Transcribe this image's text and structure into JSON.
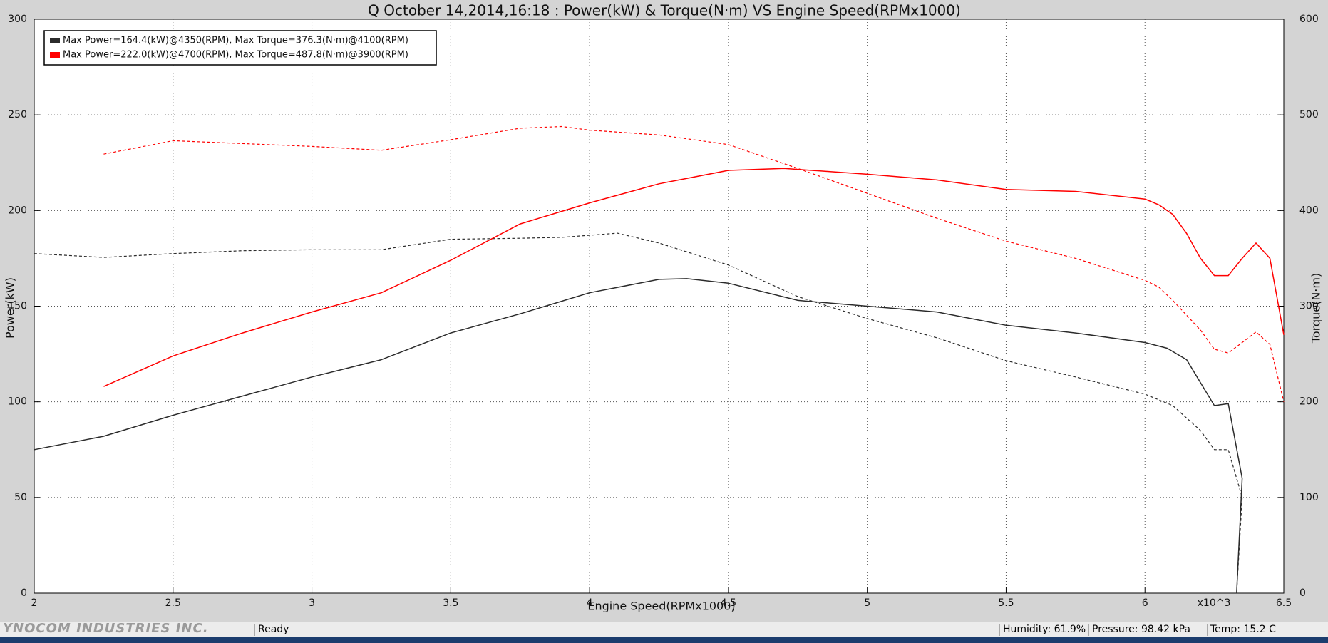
{
  "chart_data": {
    "type": "line",
    "title": "Q October 14,2014,16:18  : Power(kW) & Torque(N·m) VS Engine Speed(RPMx1000)",
    "xlabel": "Engine Speed(RPMx1000)",
    "ylabel": "Power(kW)",
    "y2label": "Torque(N·m)",
    "x_scale_label": "x10^3",
    "xlim": [
      2,
      6.5
    ],
    "xticks": [
      2,
      2.5,
      3,
      3.5,
      4,
      4.5,
      5,
      5.5,
      6,
      6.5
    ],
    "ylim": [
      0,
      300
    ],
    "yticks": [
      0,
      50,
      100,
      150,
      200,
      250,
      300
    ],
    "y2lim": [
      0,
      600
    ],
    "y2ticks": [
      0,
      100,
      200,
      300,
      400,
      500,
      600
    ],
    "grid": true,
    "legend_position": "upper left",
    "series": [
      {
        "name": "Max Power=164.4(kW)@4350(RPM), Max Torque=376.3(N·m)@4100(RPM)",
        "color": "#2b2b2b",
        "dash": false,
        "x": [
          2.0,
          2.25,
          2.5,
          2.75,
          3.0,
          3.25,
          3.5,
          3.75,
          4.0,
          4.25,
          4.35,
          4.5,
          4.75,
          5.0,
          5.25,
          5.5,
          5.75,
          6.0,
          6.08,
          6.15,
          6.2,
          6.25,
          6.3,
          6.35,
          6.33
        ],
        "values": [
          75,
          82,
          93,
          103,
          113,
          122,
          136,
          146,
          157,
          164,
          164.4,
          162,
          153,
          150,
          147,
          140,
          136,
          131,
          128,
          122,
          110,
          98,
          99,
          60,
          0
        ]
      },
      {
        "color": "#2b2b2b",
        "dash": true,
        "axis": "y2",
        "x": [
          2.0,
          2.25,
          2.5,
          2.75,
          3.0,
          3.25,
          3.5,
          3.75,
          3.9,
          4.1,
          4.25,
          4.5,
          4.75,
          5.0,
          5.25,
          5.5,
          5.75,
          6.0,
          6.1,
          6.2,
          6.25,
          6.3,
          6.35,
          6.33
        ],
        "values": [
          355,
          351,
          355,
          358,
          359,
          359,
          370,
          371,
          372,
          376.3,
          366,
          343,
          310,
          287,
          267,
          243,
          226,
          208,
          196,
          170,
          150,
          150,
          100,
          0
        ]
      },
      {
        "name": "Max Power=222.0(kW)@4700(RPM), Max Torque=487.8(N·m)@3900(RPM)",
        "color": "#ff0000",
        "dash": false,
        "x": [
          2.25,
          2.5,
          2.75,
          3.0,
          3.25,
          3.5,
          3.75,
          4.0,
          4.25,
          4.5,
          4.7,
          5.0,
          5.25,
          5.5,
          5.75,
          6.0,
          6.05,
          6.1,
          6.15,
          6.2,
          6.25,
          6.3,
          6.35,
          6.4,
          6.45,
          6.5
        ],
        "values": [
          108,
          124,
          136,
          147,
          157,
          174,
          193,
          204,
          214,
          221,
          222.0,
          219,
          216,
          211,
          210,
          206,
          203,
          198,
          188,
          175,
          166,
          166,
          175,
          183,
          175,
          135
        ]
      },
      {
        "color": "#ff0000",
        "dash": true,
        "axis": "y2",
        "x": [
          2.25,
          2.5,
          2.75,
          3.0,
          3.25,
          3.5,
          3.75,
          3.9,
          4.0,
          4.25,
          4.5,
          4.75,
          5.0,
          5.25,
          5.5,
          5.75,
          6.0,
          6.05,
          6.1,
          6.2,
          6.25,
          6.3,
          6.35,
          6.4,
          6.45,
          6.5
        ],
        "values": [
          459,
          473,
          470,
          467,
          463,
          474,
          486,
          487.8,
          484,
          479,
          469,
          444,
          418,
          392,
          368,
          350,
          327,
          320,
          306,
          275,
          255,
          251,
          262,
          273,
          260,
          200
        ]
      }
    ]
  },
  "status_bar": {
    "logo": "YNOCOM INDUSTRIES INC.",
    "status": "Ready",
    "humidity": "Humidity: 61.9%",
    "pressure": "Pressure: 98.42 kPa",
    "temp": "Temp: 15.2 C"
  }
}
